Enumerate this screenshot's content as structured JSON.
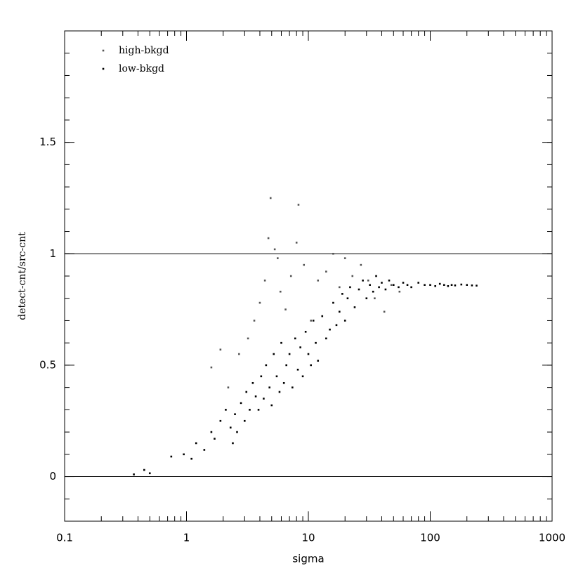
{
  "chart_data": {
    "type": "scatter",
    "xlabel": "sigma",
    "ylabel": "detect-cnt/src-cnt",
    "xscale": "log",
    "xlim": [
      0.1,
      1000
    ],
    "xticks": [
      0.1,
      1,
      10,
      100,
      1000
    ],
    "ylim": [
      -0.2,
      2.0
    ],
    "yticks": [
      0,
      0.5,
      1,
      1.5
    ],
    "hlines": [
      0,
      1
    ],
    "legend": "upper left",
    "series": [
      {
        "name": "high-bkgd",
        "color": "#555555",
        "x": [
          1.6,
          1.9,
          2.2,
          2.7,
          3.2,
          3.6,
          4.0,
          4.4,
          4.7,
          4.9,
          5.3,
          5.6,
          5.9,
          6.5,
          7.2,
          8.0,
          8.3,
          9.2,
          10.5,
          12,
          14,
          16,
          18,
          20,
          23,
          27,
          31,
          35,
          42,
          48,
          56
        ],
        "values": [
          0.49,
          0.57,
          0.4,
          0.55,
          0.62,
          0.7,
          0.78,
          0.88,
          1.07,
          1.25,
          1.02,
          0.98,
          0.83,
          0.75,
          0.9,
          1.05,
          1.22,
          0.95,
          0.7,
          0.88,
          0.92,
          1.0,
          0.85,
          0.98,
          0.9,
          0.95,
          0.88,
          0.8,
          0.74,
          0.86,
          0.83
        ]
      },
      {
        "name": "low-bkgd",
        "color": "#000000",
        "x": [
          0.37,
          0.45,
          0.5,
          0.75,
          0.95,
          1.1,
          1.2,
          1.4,
          1.6,
          1.7,
          1.9,
          2.1,
          2.3,
          2.4,
          2.5,
          2.6,
          2.8,
          3.0,
          3.1,
          3.3,
          3.5,
          3.7,
          3.9,
          4.1,
          4.3,
          4.5,
          4.8,
          5.0,
          5.2,
          5.5,
          5.8,
          6.0,
          6.3,
          6.6,
          7.0,
          7.4,
          7.8,
          8.2,
          8.6,
          9.0,
          9.5,
          10,
          10.5,
          11,
          11.5,
          12,
          13,
          14,
          15,
          16,
          17,
          18,
          19,
          20,
          21,
          22,
          24,
          26,
          28,
          30,
          32,
          34,
          36,
          38,
          40,
          43,
          46,
          50,
          55,
          60,
          65,
          70,
          80,
          90,
          100,
          110,
          120,
          130,
          140,
          150,
          160,
          180,
          200,
          220,
          240
        ],
        "values": [
          0.01,
          0.03,
          0.015,
          0.09,
          0.1,
          0.08,
          0.15,
          0.12,
          0.2,
          0.17,
          0.25,
          0.3,
          0.22,
          0.15,
          0.28,
          0.2,
          0.33,
          0.25,
          0.38,
          0.3,
          0.42,
          0.36,
          0.3,
          0.45,
          0.35,
          0.5,
          0.4,
          0.32,
          0.55,
          0.45,
          0.38,
          0.6,
          0.42,
          0.5,
          0.55,
          0.4,
          0.62,
          0.48,
          0.58,
          0.45,
          0.65,
          0.55,
          0.5,
          0.7,
          0.6,
          0.52,
          0.72,
          0.62,
          0.66,
          0.78,
          0.68,
          0.74,
          0.82,
          0.7,
          0.8,
          0.85,
          0.76,
          0.84,
          0.88,
          0.8,
          0.86,
          0.83,
          0.9,
          0.85,
          0.87,
          0.84,
          0.88,
          0.86,
          0.85,
          0.87,
          0.86,
          0.85,
          0.87,
          0.86,
          0.86,
          0.855,
          0.865,
          0.86,
          0.855,
          0.86,
          0.858,
          0.862,
          0.86,
          0.858,
          0.857
        ]
      }
    ]
  }
}
